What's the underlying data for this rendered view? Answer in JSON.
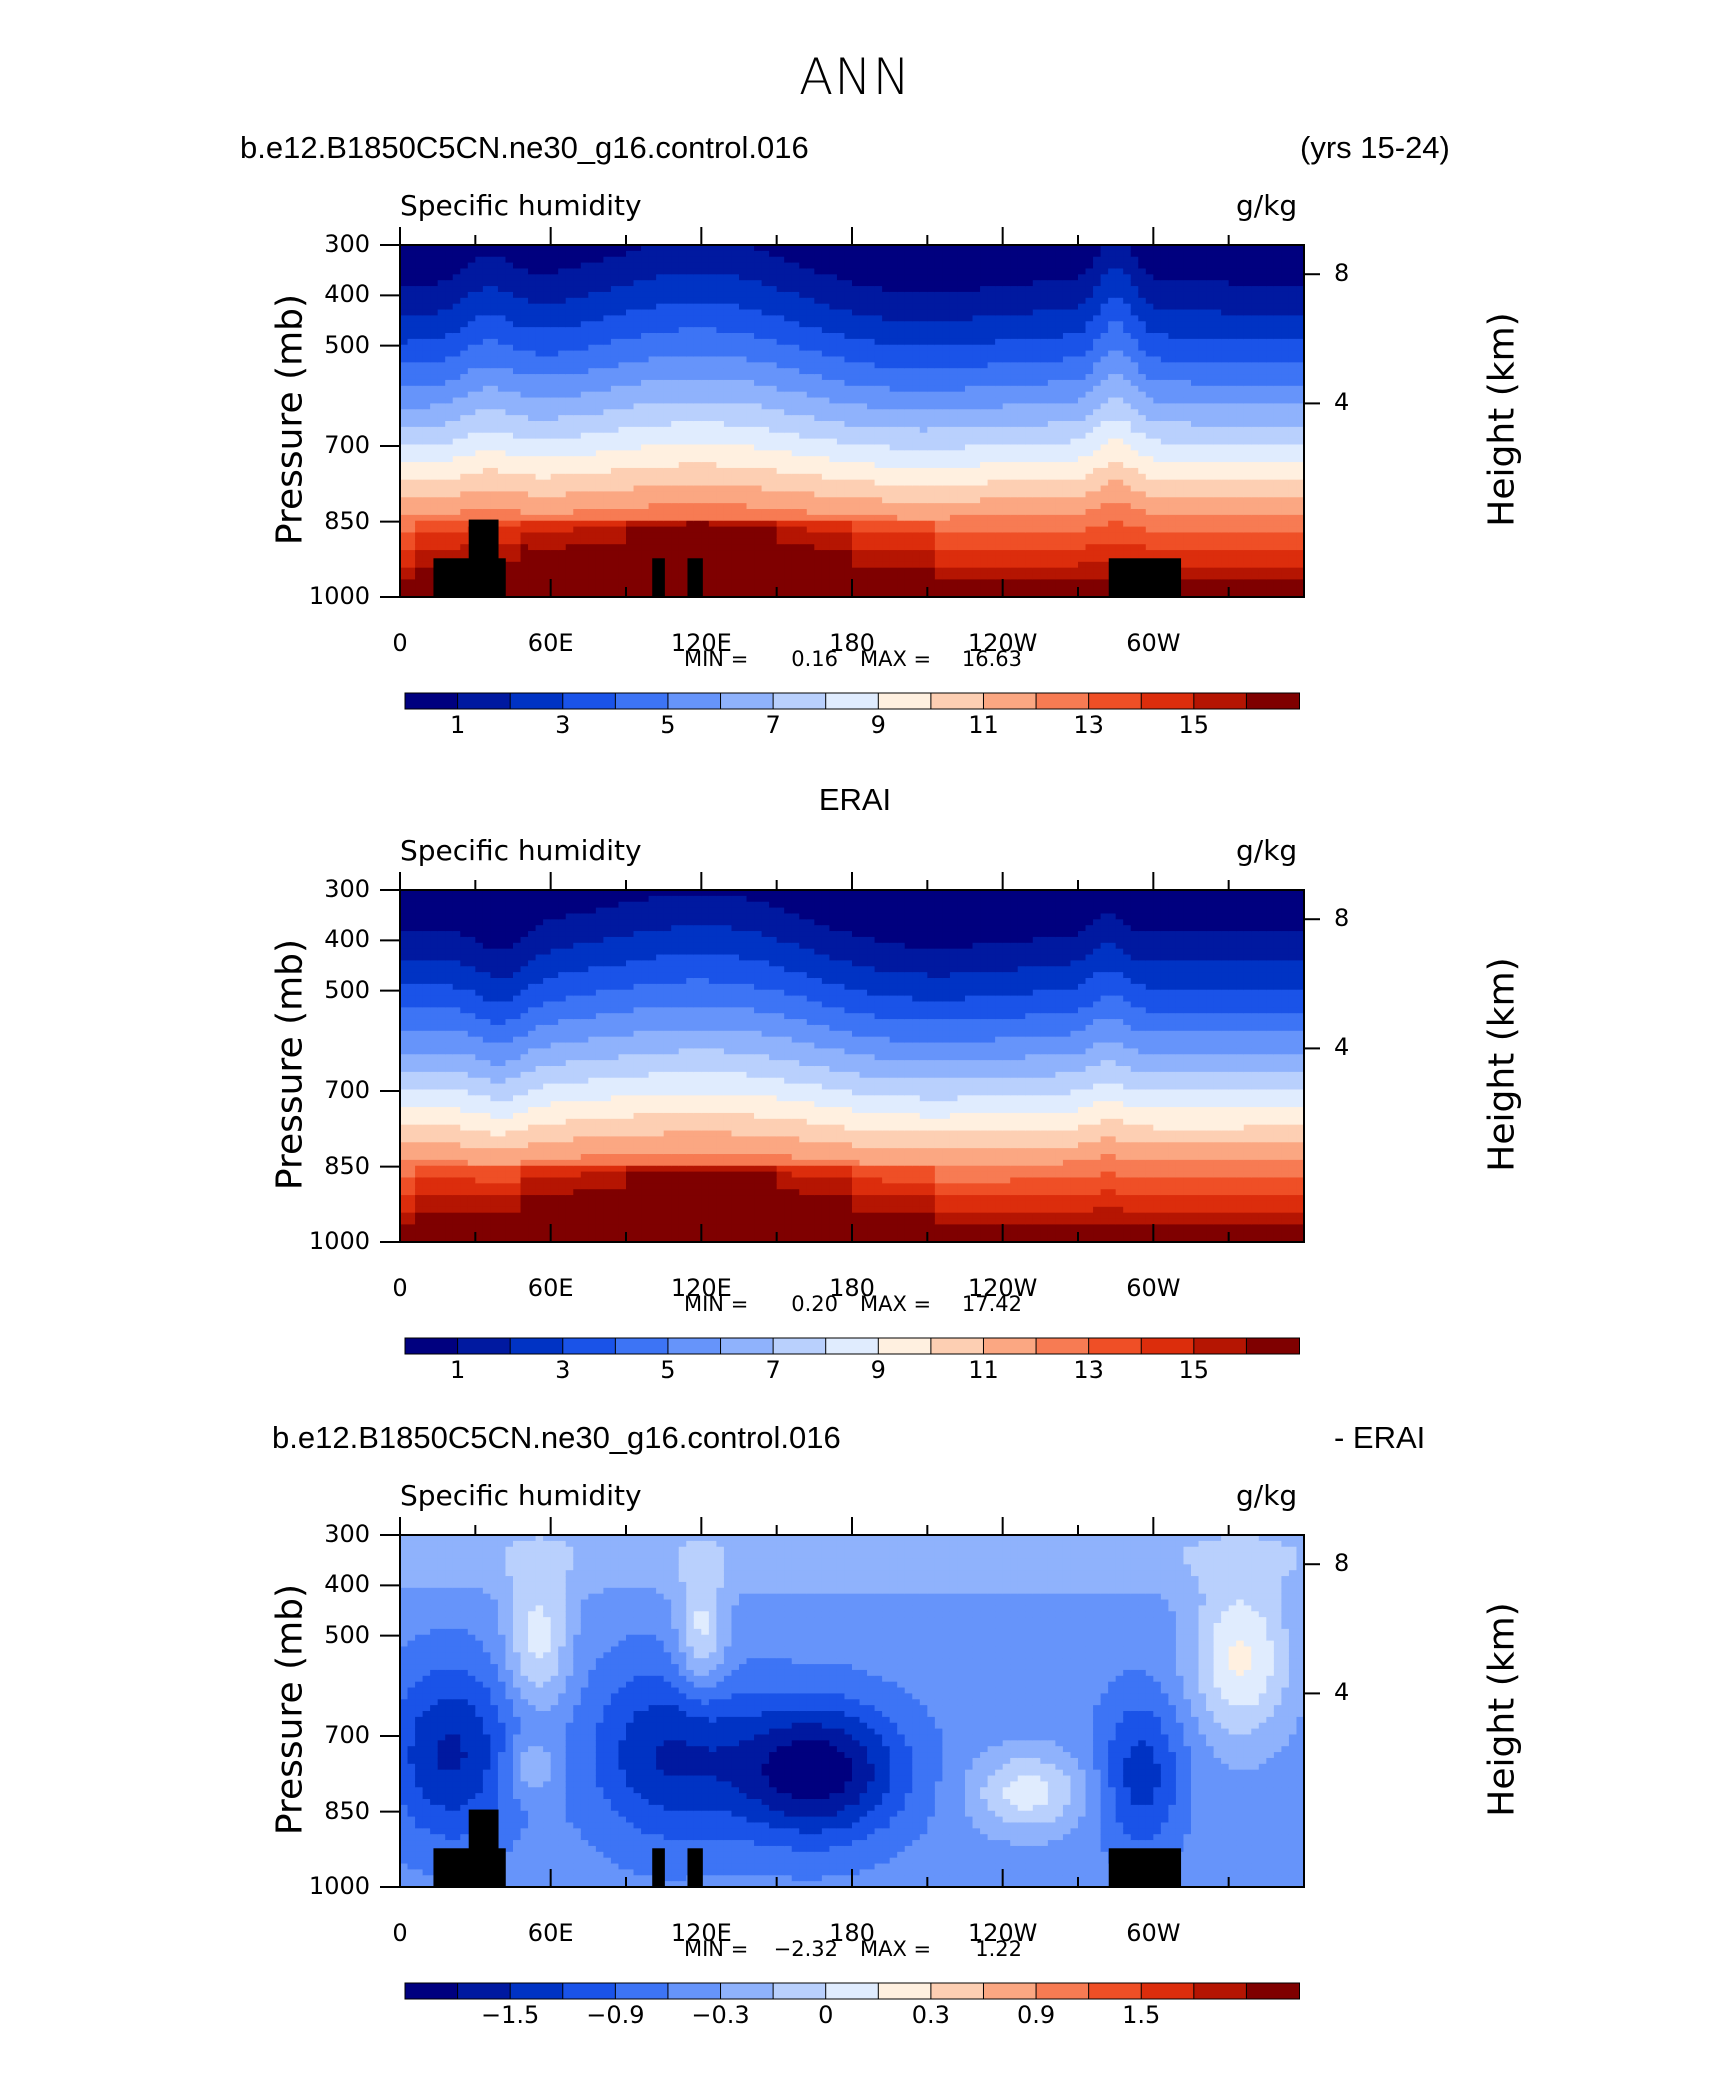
{
  "page_title": "ANN",
  "chart_data": [
    {
      "type": "heatmap",
      "case_title": "b.e12.B1850C5CN.ne30_g16.control.016",
      "period": "(yrs 15-24)",
      "variable": "Specific humidity",
      "units": "g/kg",
      "ylabel": "Pressure (mb)",
      "ylabel_right": "Height (km)",
      "x_ticks": [
        "0",
        "60E",
        "120E",
        "180",
        "120W",
        "60W"
      ],
      "y_ticks": [
        "300",
        "400",
        "500",
        "700",
        "850",
        "1000"
      ],
      "y_right_ticks": [
        "8",
        "4"
      ],
      "stats": {
        "min_label": "MIN =",
        "min": "0.16",
        "max_label": "MAX =",
        "max": "16.63"
      },
      "colorbar_labels": [
        "1",
        "3",
        "5",
        "7",
        "9",
        "11",
        "13",
        "15"
      ],
      "masked": true
    },
    {
      "type": "heatmap",
      "case_title": "ERAI",
      "variable": "Specific humidity",
      "units": "g/kg",
      "ylabel": "Pressure (mb)",
      "ylabel_right": "Height (km)",
      "x_ticks": [
        "0",
        "60E",
        "120E",
        "180",
        "120W",
        "60W"
      ],
      "y_ticks": [
        "300",
        "400",
        "500",
        "700",
        "850",
        "1000"
      ],
      "y_right_ticks": [
        "8",
        "4"
      ],
      "stats": {
        "min_label": "MIN =",
        "min": "0.20",
        "max_label": "MAX =",
        "max": "17.42"
      },
      "colorbar_labels": [
        "1",
        "3",
        "5",
        "7",
        "9",
        "11",
        "13",
        "15"
      ],
      "masked": false
    },
    {
      "type": "heatmap",
      "case_title": "b.e12.B1850C5CN.ne30_g16.control.016",
      "period": "- ERAI",
      "variable": "Specific humidity",
      "units": "g/kg",
      "ylabel": "Pressure (mb)",
      "ylabel_right": "Height (km)",
      "x_ticks": [
        "0",
        "60E",
        "120E",
        "180",
        "120W",
        "60W"
      ],
      "y_ticks": [
        "300",
        "400",
        "500",
        "700",
        "850",
        "1000"
      ],
      "y_right_ticks": [
        "8",
        "4"
      ],
      "stats": {
        "min_label": "MIN =",
        "min": "−2.32",
        "max_label": "MAX =",
        "max": "1.22"
      },
      "colorbar_labels": [
        "−1.5",
        "−0.9",
        "−0.3",
        "0",
        "0.3",
        "0.9",
        "1.5"
      ],
      "masked": true
    }
  ],
  "colors": {
    "palette": [
      "#00007f",
      "#0019a0",
      "#0033c4",
      "#1a53e8",
      "#3d74f5",
      "#6694fa",
      "#8fb2fc",
      "#b9d0fd",
      "#e0ecfe",
      "#fff0e0",
      "#fdcfb3",
      "#fba782",
      "#f77b53",
      "#ef4f26",
      "#dc2d0c",
      "#b51502",
      "#7f0000"
    ]
  }
}
